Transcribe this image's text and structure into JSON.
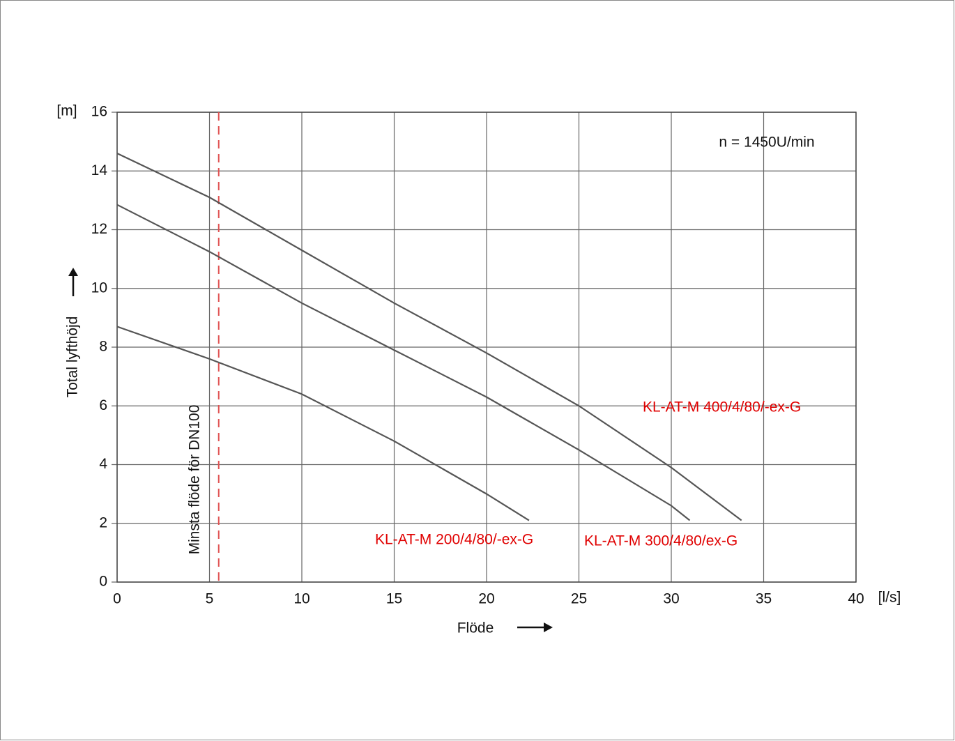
{
  "chart_data": {
    "type": "line",
    "xlabel": "Flöde",
    "ylabel": "Total lyfthöjd",
    "x_unit": "[l/s]",
    "y_unit": "[m]",
    "xlim": [
      0,
      40
    ],
    "xticks": [
      0,
      5,
      10,
      15,
      20,
      25,
      30,
      35,
      40
    ],
    "ylim": [
      0,
      16
    ],
    "yticks": [
      0,
      2,
      4,
      6,
      8,
      10,
      12,
      14,
      16
    ],
    "grid": true,
    "label_color": "#e00000",
    "series": [
      {
        "name": "KL-AT-M 400/4/80/-ex-G",
        "color": "#555555",
        "x": [
          0,
          5,
          10,
          15,
          20,
          25,
          30,
          33.8
        ],
        "values": [
          14.6,
          13.1,
          11.3,
          9.5,
          7.8,
          6.0,
          3.9,
          2.1
        ]
      },
      {
        "name": "KL-AT-M 300/4/80/ex-G",
        "color": "#555555",
        "x": [
          0,
          5,
          10,
          15,
          20,
          25,
          30,
          31
        ],
        "values": [
          12.85,
          11.25,
          9.5,
          7.9,
          6.3,
          4.5,
          2.6,
          2.1
        ]
      },
      {
        "name": "KL-AT-M 200/4/80/-ex-G",
        "color": "#555555",
        "x": [
          0,
          5,
          10,
          15,
          20,
          22.3
        ],
        "values": [
          8.7,
          7.6,
          6.4,
          4.8,
          3.0,
          2.1
        ]
      }
    ],
    "annotations": [
      {
        "text": "n = 1450U/min"
      },
      {
        "text": "Minsta flöde för DN100",
        "x": 5.5,
        "color": "#e05050"
      }
    ]
  }
}
